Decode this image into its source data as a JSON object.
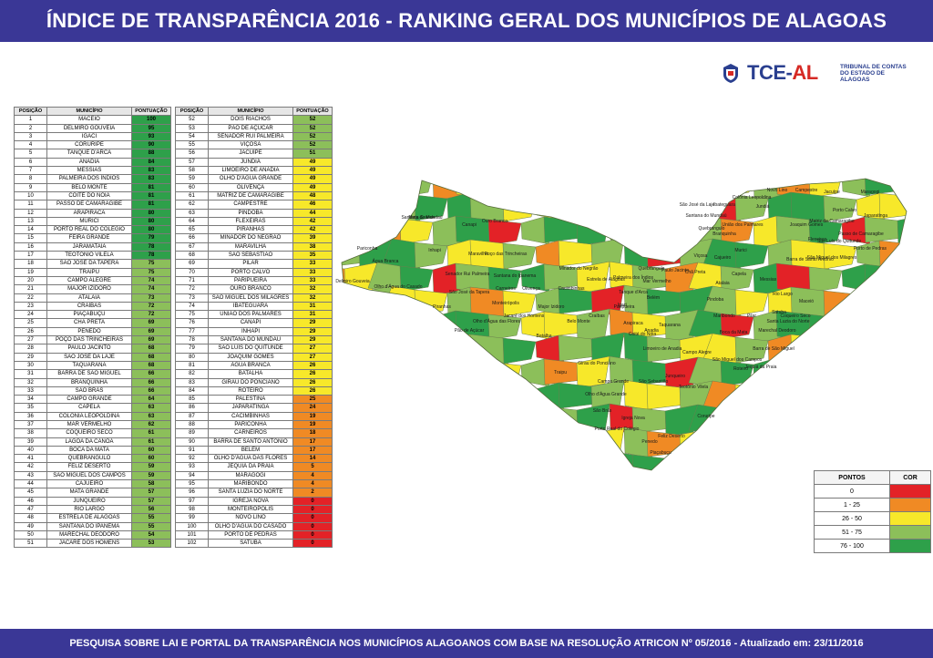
{
  "header": {
    "title": "ÍNDICE DE TRANSPARÊNCIA 2016 - RANKING GERAL DOS MUNICÍPIOS DE ALAGOAS"
  },
  "footer": {
    "text": "PESQUISA SOBRE LAI E PORTAL DA TRANSPARÊNCIA NOS MUNICÍPIOS ALAGOANOS COM BASE NA RESOLUÇÃO ATRICON Nº 05/2016 - Atualizado em: 23/11/2016"
  },
  "logo": {
    "brand_main": "TCE-",
    "brand_accent": "AL",
    "subtitle": "TRIBUNAL DE CONTAS DO ESTADO DE ALAGOAS"
  },
  "table": {
    "headers": [
      "POSIÇÃO",
      "MUNICÍPIO",
      "PONTUAÇÃO"
    ]
  },
  "colors": {
    "0": "#e32227",
    "1-25": "#f08a24",
    "26-50": "#f7e82a",
    "51-75": "#8cbf5a",
    "76-100": "#2ea04a"
  },
  "legend": {
    "header_points": "PONTOS",
    "header_color": "COR",
    "rows": [
      {
        "range": "0",
        "color": "#e32227"
      },
      {
        "range": "1 - 25",
        "color": "#f08a24"
      },
      {
        "range": "26 - 50",
        "color": "#f7e82a"
      },
      {
        "range": "51 - 75",
        "color": "#8cbf5a"
      },
      {
        "range": "76 - 100",
        "color": "#2ea04a"
      }
    ]
  },
  "ranking": [
    [
      "1",
      "MACEIÓ",
      "100"
    ],
    [
      "2",
      "DELMIRO GOUVEIA",
      "95"
    ],
    [
      "3",
      "IGACI",
      "93"
    ],
    [
      "4",
      "CORURIPE",
      "90"
    ],
    [
      "5",
      "TANQUE D'ARCA",
      "88"
    ],
    [
      "6",
      "ANADIA",
      "84"
    ],
    [
      "7",
      "MESSIAS",
      "83"
    ],
    [
      "8",
      "PALMEIRA DOS ÍNDIOS",
      "83"
    ],
    [
      "9",
      "BELO MONTE",
      "81"
    ],
    [
      "10",
      "COITÉ DO NÓIA",
      "81"
    ],
    [
      "11",
      "PASSO DE CAMARAGIBE",
      "81"
    ],
    [
      "12",
      "ARAPIRACA",
      "80"
    ],
    [
      "13",
      "MURICI",
      "80"
    ],
    [
      "14",
      "PORTO REAL DO COLÉGIO",
      "80"
    ],
    [
      "15",
      "FEIRA GRANDE",
      "79"
    ],
    [
      "16",
      "JARAMATAIA",
      "78"
    ],
    [
      "17",
      "TEOTÔNIO VILELA",
      "78"
    ],
    [
      "18",
      "SÃO JOSÉ DA TAPERA",
      "75"
    ],
    [
      "19",
      "TRAIPU",
      "75"
    ],
    [
      "20",
      "CAMPO ALEGRE",
      "74"
    ],
    [
      "21",
      "MAJOR IZIDORO",
      "74"
    ],
    [
      "22",
      "ATALAIA",
      "73"
    ],
    [
      "23",
      "CRAÍBAS",
      "72"
    ],
    [
      "24",
      "PIAÇABUÇU",
      "72"
    ],
    [
      "25",
      "CHÃ PRETA",
      "69"
    ],
    [
      "26",
      "PENEDO",
      "69"
    ],
    [
      "27",
      "POÇO DAS TRINCHEIRAS",
      "69"
    ],
    [
      "28",
      "PAULO JACINTO",
      "68"
    ],
    [
      "29",
      "SÃO JOSÉ DA LAJE",
      "68"
    ],
    [
      "30",
      "TAQUARANA",
      "68"
    ],
    [
      "31",
      "BARRA DE SÃO MIGUEL",
      "66"
    ],
    [
      "32",
      "BRANQUINHA",
      "66"
    ],
    [
      "33",
      "SÃO BRÁS",
      "66"
    ],
    [
      "34",
      "CAMPO GRANDE",
      "64"
    ],
    [
      "35",
      "CAPELA",
      "63"
    ],
    [
      "36",
      "COLÔNIA LEOPOLDINA",
      "63"
    ],
    [
      "37",
      "MAR VERMELHO",
      "62"
    ],
    [
      "38",
      "COQUEIRO SECO",
      "61"
    ],
    [
      "39",
      "LAGOA DA CANOA",
      "61"
    ],
    [
      "40",
      "BOCA DA MATA",
      "60"
    ],
    [
      "41",
      "QUEBRANGULO",
      "60"
    ],
    [
      "42",
      "FELIZ DESERTO",
      "59"
    ],
    [
      "43",
      "SÃO MIGUEL DOS CAMPOS",
      "59"
    ],
    [
      "44",
      "CAJUEIRO",
      "58"
    ],
    [
      "45",
      "MATA GRANDE",
      "57"
    ],
    [
      "46",
      "JUNQUEIRO",
      "57"
    ],
    [
      "47",
      "RIO LARGO",
      "56"
    ],
    [
      "48",
      "ESTRELA DE ALAGOAS",
      "55"
    ],
    [
      "49",
      "SANTANA DO IPANEMA",
      "55"
    ],
    [
      "50",
      "MARECHAL DEODORO",
      "54"
    ],
    [
      "51",
      "JACARÉ DOS HOMENS",
      "53"
    ],
    [
      "52",
      "DOIS RIACHOS",
      "52"
    ],
    [
      "53",
      "PÃO DE AÇÚCAR",
      "52"
    ],
    [
      "54",
      "SENADOR RUI PALMEIRA",
      "52"
    ],
    [
      "55",
      "VIÇOSA",
      "52"
    ],
    [
      "56",
      "JACUÍPE",
      "51"
    ],
    [
      "57",
      "JUNDIÁ",
      "49"
    ],
    [
      "58",
      "LIMOEIRO DE ANADIA",
      "49"
    ],
    [
      "59",
      "OLHO D'ÁGUA GRANDE",
      "49"
    ],
    [
      "60",
      "OLIVENÇA",
      "49"
    ],
    [
      "61",
      "MATRIZ DE CAMARAGIBE",
      "48"
    ],
    [
      "62",
      "CAMPESTRE",
      "46"
    ],
    [
      "63",
      "PINDOBA",
      "44"
    ],
    [
      "64",
      "FLEXEIRAS",
      "42"
    ],
    [
      "65",
      "PIRANHAS",
      "42"
    ],
    [
      "66",
      "MINADOR DO NEGRÃO",
      "39"
    ],
    [
      "67",
      "MARAVILHA",
      "38"
    ],
    [
      "68",
      "SÃO SEBASTIÃO",
      "35"
    ],
    [
      "69",
      "PILAR",
      "33"
    ],
    [
      "70",
      "PORTO CALVO",
      "33"
    ],
    [
      "71",
      "PARIPUEIRA",
      "33"
    ],
    [
      "72",
      "OURO BRANCO",
      "32"
    ],
    [
      "73",
      "SÃO MIGUEL DOS MILAGRES",
      "32"
    ],
    [
      "74",
      "IBATEGUARA",
      "31"
    ],
    [
      "75",
      "UNIÃO DOS PALMARES",
      "31"
    ],
    [
      "76",
      "CANAPI",
      "29"
    ],
    [
      "77",
      "INHAPI",
      "29"
    ],
    [
      "78",
      "SANTANA DO MUNDAÚ",
      "29"
    ],
    [
      "79",
      "SÃO LUÍS DO QUITUNDE",
      "27"
    ],
    [
      "80",
      "JOAQUIM GOMES",
      "27"
    ],
    [
      "81",
      "ÁGUA BRANCA",
      "26"
    ],
    [
      "82",
      "BATALHA",
      "26"
    ],
    [
      "83",
      "GIRAU DO PONCIANO",
      "26"
    ],
    [
      "84",
      "ROTEIRO",
      "26"
    ],
    [
      "85",
      "PALESTINA",
      "25"
    ],
    [
      "86",
      "JAPARATINGA",
      "24"
    ],
    [
      "87",
      "CACIMBINHAS",
      "19"
    ],
    [
      "88",
      "PARICONHA",
      "19"
    ],
    [
      "89",
      "CARNEIROS",
      "18"
    ],
    [
      "90",
      "BARRA DE SANTO ANTÔNIO",
      "17"
    ],
    [
      "91",
      "BELÉM",
      "17"
    ],
    [
      "92",
      "OLHO D'ÁGUA DAS FLORES",
      "14"
    ],
    [
      "93",
      "JEQUIÁ DA PRAIA",
      "5"
    ],
    [
      "94",
      "MARAGOGI",
      "4"
    ],
    [
      "95",
      "MARIBONDO",
      "4"
    ],
    [
      "96",
      "SANTA LUZIA DO NORTE",
      "2"
    ],
    [
      "97",
      "IGREJA NOVA",
      "0"
    ],
    [
      "98",
      "MONTEIRÓPOLIS",
      "0"
    ],
    [
      "99",
      "NOVO LINO",
      "0"
    ],
    [
      "100",
      "OLHO D'ÁGUA DO CASADO",
      "0"
    ],
    [
      "101",
      "PORTO DE PEDRAS",
      "0"
    ],
    [
      "102",
      "SATUBA",
      "0"
    ]
  ],
  "map_labels": [
    "Mata Grande",
    "Canapi",
    "Ouro Branco",
    "Pariconha",
    "Água Branca",
    "Inhapi",
    "Maravilha",
    "Delmiro Gouveia",
    "Poço das Trincheiras",
    "Senador Rui Palmeira",
    "Santana do Ipanema",
    "Olho d'Água do Casado",
    "São José da Tapera",
    "Carneiros",
    "Olivença",
    "Minador do Negrão",
    "Cacimbinhas",
    "Estrela de Alagoas",
    "Palmeira dos Índios",
    "Quebrangulo",
    "Piranhas",
    "Pão de Açúcar",
    "Monteirópolis",
    "Jacaré dos Homens",
    "Major Izidoro",
    "Olho d'Água das Flores",
    "Batalha",
    "Belo Monte",
    "Craíbas",
    "Igaci",
    "Arapiraca",
    "Traipu",
    "Girau do Ponciano",
    "Campo Grande",
    "Olho d'Água Grande",
    "São Brás",
    "Porto Real do Colégio",
    "Igreja Nova",
    "Penedo",
    "Piaçabuçu",
    "Feliz Deserto",
    "Coruripe",
    "Junqueiro",
    "São Sebastião",
    "Teotônio Vilela",
    "Campo Alegre",
    "Limoeiro de Anadia",
    "Anadia",
    "Taquarana",
    "Coité do Nóia",
    "Belém",
    "Tanque d'Arca",
    "Mar Vermelho",
    "Paulo Jacinto",
    "Chã Preta",
    "Viçosa",
    "Cajueiro",
    "Capela",
    "Atalaia",
    "Pindoba",
    "Maribondo",
    "Boca da Mata",
    "São Miguel dos Campos",
    "Roteiro",
    "Jequiá da Praia",
    "Barra de São Miguel",
    "Marechal Deodoro",
    "Pilar",
    "Satuba",
    "Santa Luzia do Norte",
    "Coqueiro Seco",
    "Maceió",
    "Rio Largo",
    "Messias",
    "Murici",
    "Branquinha",
    "União dos Palmares",
    "Santana do Mundaú",
    "São José da Laje",
    "Ibateguara",
    "Colônia Leopoldina",
    "Novo Lino",
    "Jundiá",
    "Campestre",
    "Jacuípe",
    "Maragogi",
    "Porto Calvo",
    "Japaratinga",
    "Matriz de Camaragibe",
    "Joaquim Gomes",
    "Flexeiras",
    "São Luís do Quitunde",
    "Passo de Camaragibe",
    "Porto de Pedras",
    "São Miguel dos Milagres",
    "Barra de Santo Antônio",
    "Paripueira",
    "Quebrangulo",
    "Santana do Mundaú"
  ]
}
